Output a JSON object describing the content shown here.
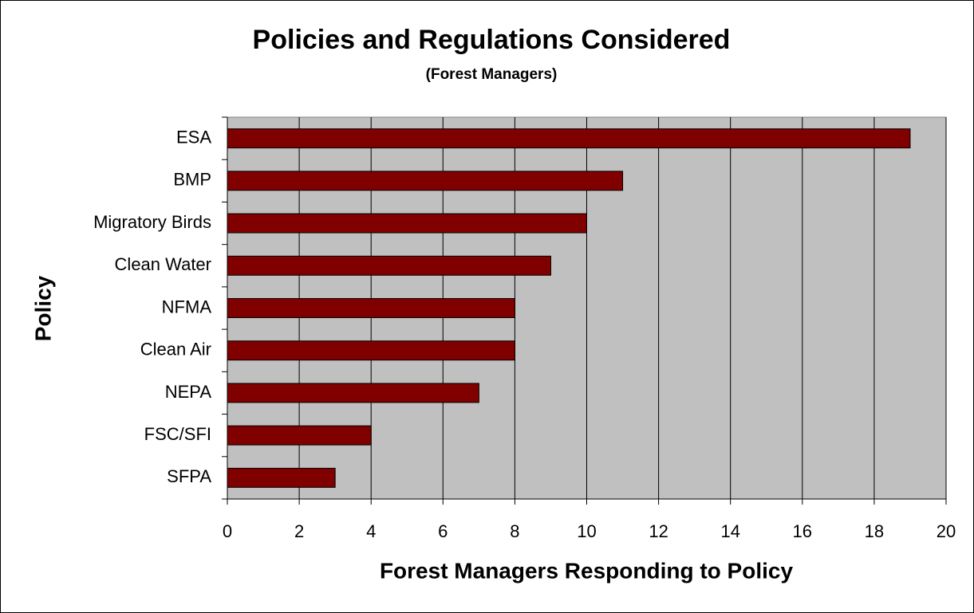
{
  "chart_data": {
    "type": "barh",
    "title": "Policies and Regulations Considered",
    "subtitle": "(Forest Managers)",
    "x_label": "Forest Managers Responding to Policy",
    "y_label": "Policy",
    "categories": [
      "ESA",
      "BMP",
      "Migratory Birds",
      "Clean Water",
      "NFMA",
      "Clean Air",
      "NEPA",
      "FSC/SFI",
      "SFPA"
    ],
    "values": [
      19,
      11,
      10,
      9,
      8,
      8,
      7,
      4,
      3
    ],
    "color": "#800000",
    "plot_background": "#c0c0c0",
    "xlim": [
      0,
      20
    ],
    "xticks": [
      0,
      2,
      4,
      6,
      8,
      10,
      12,
      14,
      16,
      18,
      20
    ],
    "grid": true
  }
}
